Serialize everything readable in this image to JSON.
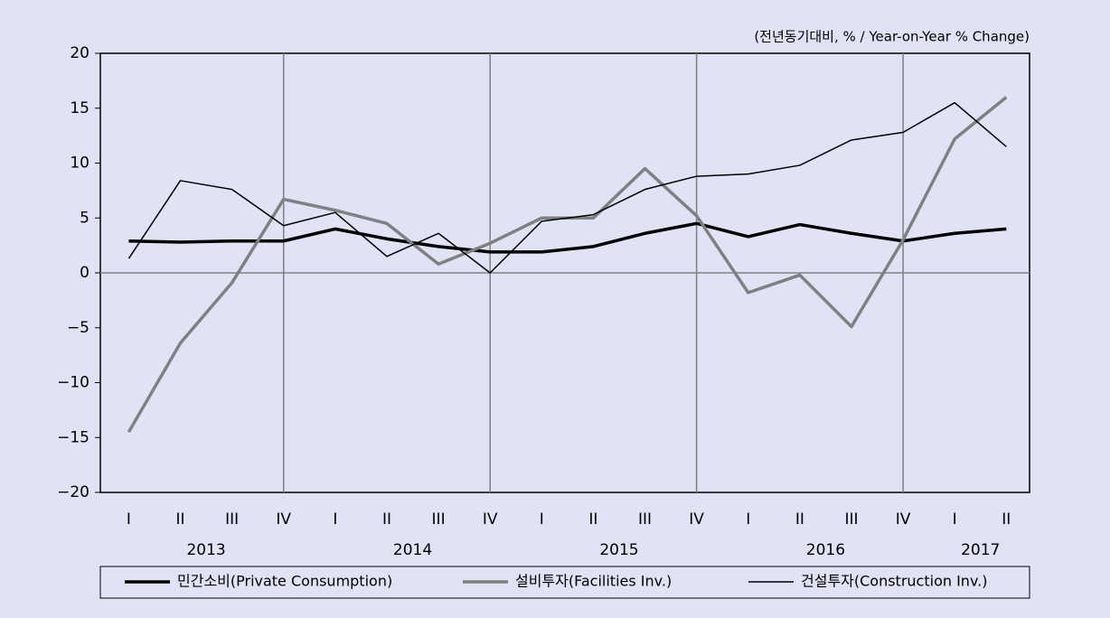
{
  "chart_data": {
    "type": "line",
    "unit_note": "(전년동기대비, % / Year-on-Year % Change)",
    "groups": [
      {
        "name": "2013",
        "quarters": [
          "I",
          "II",
          "III",
          "IV"
        ]
      },
      {
        "name": "2014",
        "quarters": [
          "I",
          "II",
          "III",
          "IV"
        ]
      },
      {
        "name": "2015",
        "quarters": [
          "I",
          "II",
          "III",
          "IV"
        ]
      },
      {
        "name": "2016",
        "quarters": [
          "I",
          "II",
          "III",
          "IV"
        ]
      },
      {
        "name": "2017",
        "quarters": [
          "I",
          "II"
        ]
      }
    ],
    "series": [
      {
        "name": "민간소비(Private Consumption)",
        "color": "#000000",
        "width": 3.5,
        "values": [
          2.9,
          2.8,
          2.9,
          2.9,
          4.0,
          3.1,
          2.4,
          1.9,
          1.9,
          2.4,
          3.6,
          4.5,
          3.3,
          4.4,
          3.6,
          2.9,
          3.6,
          4.0
        ]
      },
      {
        "name": "설비투자(Facilities Inv.)",
        "color": "#808080",
        "width": 3.5,
        "values": [
          -14.5,
          -6.4,
          -0.9,
          6.7,
          5.7,
          4.5,
          0.8,
          2.7,
          5.0,
          5.0,
          9.5,
          5.2,
          -1.8,
          -0.2,
          -4.9,
          3.0,
          12.2,
          16.0
        ]
      },
      {
        "name": "건설투자(Construction Inv.)",
        "color": "#000000",
        "width": 1.5,
        "values": [
          1.3,
          8.4,
          7.6,
          4.3,
          5.5,
          1.5,
          3.6,
          0.0,
          4.7,
          5.3,
          7.6,
          8.8,
          9.0,
          9.8,
          12.1,
          12.8,
          15.5,
          11.5
        ]
      }
    ],
    "ylim": [
      -20,
      20
    ],
    "yticks": [
      {
        "value": -20,
        "label": "−20"
      },
      {
        "value": -15,
        "label": "−15"
      },
      {
        "value": -10,
        "label": "−10"
      },
      {
        "value": -5,
        "label": "−5"
      },
      0,
      5,
      10,
      15,
      20
    ],
    "legend": "bottom"
  }
}
